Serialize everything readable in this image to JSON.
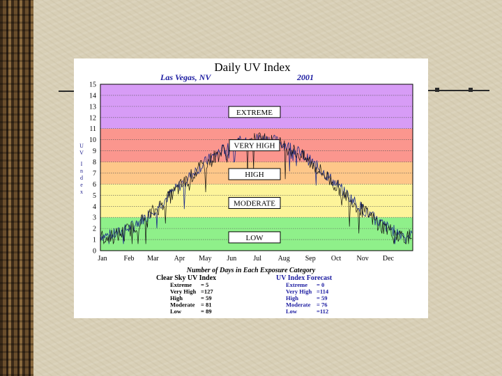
{
  "chart_data": {
    "type": "line",
    "title": "Daily UV Index",
    "location": "Las Vegas, NV",
    "year": "2001",
    "ylabel": "UV Index",
    "ylim": [
      0,
      15
    ],
    "yticks": [
      "0",
      "1",
      "2",
      "3",
      "4",
      "5",
      "6",
      "7",
      "8",
      "9",
      "10",
      "11",
      "12",
      "13",
      "14",
      "15"
    ],
    "months": [
      "Jan",
      "Feb",
      "Mar",
      "Apr",
      "May",
      "Jun",
      "Jul",
      "Aug",
      "Sep",
      "Oct",
      "Nov",
      "Dec"
    ],
    "bands": [
      {
        "name": "LOW",
        "from": 0,
        "to": 3,
        "color": "#8ff08a"
      },
      {
        "name": "MODERATE",
        "from": 3,
        "to": 6,
        "color": "#fdf49a"
      },
      {
        "name": "HIGH",
        "from": 6,
        "to": 8,
        "color": "#fec789"
      },
      {
        "name": "VERY HIGH",
        "from": 8,
        "to": 11,
        "color": "#fb968e"
      },
      {
        "name": "EXTREME",
        "from": 11,
        "to": 15,
        "color": "#d79cf6"
      }
    ],
    "series": [
      {
        "name": "Clear Sky UV Index",
        "color": "#1a2a8a"
      },
      {
        "name": "UV Index Forecast",
        "color": "#111111"
      }
    ],
    "summary_title": "Number of Days in Each Exposure Category",
    "clear_sky": {
      "heading": "Clear Sky UV Index",
      "rows": [
        {
          "label": "Extreme",
          "value": "=  5"
        },
        {
          "label": "Very High",
          "value": "=127"
        },
        {
          "label": "High",
          "value": "=  59"
        },
        {
          "label": "Moderate",
          "value": "=  81"
        },
        {
          "label": "Low",
          "value": "=  89"
        }
      ]
    },
    "forecast": {
      "heading": "UV Index Forecast",
      "rows": [
        {
          "label": "Extreme",
          "value": "=  0"
        },
        {
          "label": "Very High",
          "value": "=114"
        },
        {
          "label": "High",
          "value": "=  59"
        },
        {
          "label": "Moderate",
          "value": "=  76"
        },
        {
          "label": "Low",
          "value": "=112"
        }
      ]
    }
  }
}
